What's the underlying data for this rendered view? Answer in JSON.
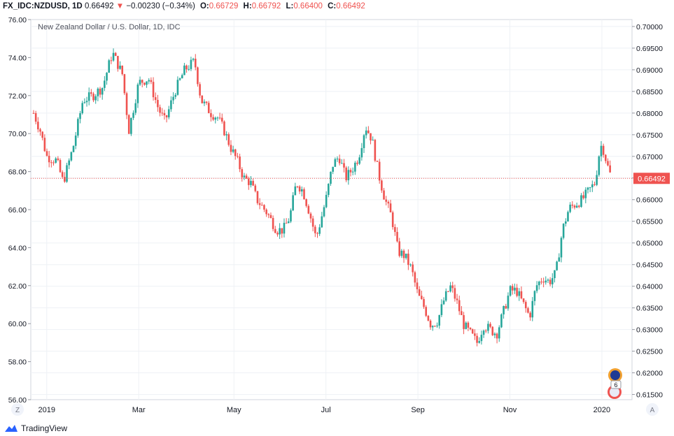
{
  "header": {
    "symbol": "FX_IDC:NZDUSD, 1D",
    "last": "0.66492",
    "arrow": "▼",
    "change": "−0.00230 (−0.34%)",
    "open_label": "O:",
    "open": "0.66729",
    "high_label": "H:",
    "high": "0.66792",
    "low_label": "L:",
    "low": "0.66400",
    "close_label": "C:",
    "close": "0.66492"
  },
  "chart_data": {
    "type": "candlestick",
    "title": "New Zealand Dollar / U.S. Dollar, 1D, IDC",
    "left_axis": {
      "labels": [
        "76.00",
        "74.00",
        "72.00",
        "70.00",
        "68.00",
        "66.00",
        "64.00",
        "62.00",
        "60.00",
        "58.00",
        "56.00"
      ],
      "ylim": [
        56,
        76
      ]
    },
    "right_axis": {
      "labels": [
        "0.70000",
        "0.69500",
        "0.69000",
        "0.68500",
        "0.68000",
        "0.67500",
        "0.67000",
        "0.66500",
        "0.66000",
        "0.65500",
        "0.65000",
        "0.64500",
        "0.64000",
        "0.63500",
        "0.63000",
        "0.62500",
        "0.62000",
        "0.61500"
      ],
      "ylim": [
        0.6138,
        0.7016
      ]
    },
    "x_ticks": [
      "2019",
      "Mar",
      "May",
      "Jul",
      "Sep",
      "Nov",
      "2020"
    ],
    "last_price_label": "0.66492",
    "last_price": 0.66492,
    "price_path": [
      [
        0,
        0.68
      ],
      [
        4,
        0.676
      ],
      [
        8,
        0.67
      ],
      [
        14,
        0.669
      ],
      [
        18,
        0.664
      ],
      [
        24,
        0.672
      ],
      [
        30,
        0.683
      ],
      [
        36,
        0.684
      ],
      [
        42,
        0.686
      ],
      [
        48,
        0.694
      ],
      [
        54,
        0.689
      ],
      [
        58,
        0.676
      ],
      [
        64,
        0.687
      ],
      [
        70,
        0.688
      ],
      [
        76,
        0.681
      ],
      [
        80,
        0.678
      ],
      [
        86,
        0.685
      ],
      [
        92,
        0.69
      ],
      [
        98,
        0.692
      ],
      [
        102,
        0.683
      ],
      [
        108,
        0.68
      ],
      [
        112,
        0.679
      ],
      [
        116,
        0.676
      ],
      [
        120,
        0.672
      ],
      [
        124,
        0.669
      ],
      [
        128,
        0.665
      ],
      [
        132,
        0.664
      ],
      [
        136,
        0.66
      ],
      [
        142,
        0.657
      ],
      [
        148,
        0.653
      ],
      [
        152,
        0.653
      ],
      [
        156,
        0.656
      ],
      [
        160,
        0.664
      ],
      [
        164,
        0.662
      ],
      [
        168,
        0.657
      ],
      [
        172,
        0.651
      ],
      [
        178,
        0.66
      ],
      [
        182,
        0.668
      ],
      [
        186,
        0.67
      ],
      [
        190,
        0.665
      ],
      [
        194,
        0.667
      ],
      [
        198,
        0.67
      ],
      [
        202,
        0.677
      ],
      [
        206,
        0.674
      ],
      [
        210,
        0.666
      ],
      [
        214,
        0.66
      ],
      [
        218,
        0.656
      ],
      [
        222,
        0.648
      ],
      [
        226,
        0.647
      ],
      [
        230,
        0.644
      ],
      [
        234,
        0.638
      ],
      [
        238,
        0.635
      ],
      [
        242,
        0.631
      ],
      [
        246,
        0.632
      ],
      [
        250,
        0.637
      ],
      [
        254,
        0.64
      ],
      [
        258,
        0.636
      ],
      [
        262,
        0.631
      ],
      [
        266,
        0.629
      ],
      [
        270,
        0.627
      ],
      [
        274,
        0.631
      ],
      [
        278,
        0.63
      ],
      [
        282,
        0.629
      ],
      [
        286,
        0.634
      ],
      [
        290,
        0.639
      ],
      [
        294,
        0.639
      ],
      [
        298,
        0.636
      ],
      [
        302,
        0.633
      ],
      [
        306,
        0.64
      ],
      [
        310,
        0.642
      ],
      [
        314,
        0.641
      ],
      [
        318,
        0.643
      ],
      [
        322,
        0.653
      ],
      [
        326,
        0.658
      ],
      [
        330,
        0.659
      ],
      [
        334,
        0.66
      ],
      [
        338,
        0.662
      ],
      [
        342,
        0.664
      ],
      [
        344,
        0.67
      ],
      [
        346,
        0.673
      ],
      [
        348,
        0.67
      ],
      [
        350,
        0.667
      ],
      [
        352,
        0.6649
      ]
    ],
    "grid": true
  },
  "watermark": {
    "brand": "TradingView"
  },
  "scale_buttons": {
    "left": "Z",
    "right": "A"
  },
  "badges": {
    "events": "6"
  },
  "colors": {
    "up": "#26a69a",
    "down": "#ef5350",
    "grid": "#eef1f5",
    "last_price": "#ef5350",
    "brand": "#2962ff"
  }
}
